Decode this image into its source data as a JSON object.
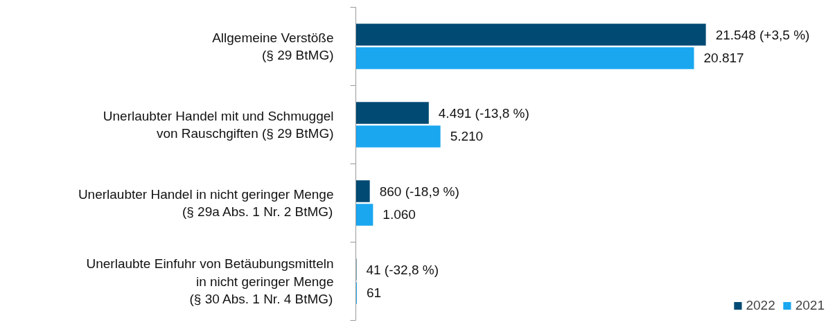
{
  "chart_data": {
    "type": "bar",
    "orientation": "horizontal",
    "categories": [
      "Allgemeine Verstöße\n(§ 29 BtMG)",
      "Unerlaubter Handel mit und Schmuggel\nvon Rauschgiften (§ 29 BtMG)",
      "Unerlaubter Handel in nicht geringer Menge\n(§ 29a Abs. 1 Nr. 2 BtMG)",
      "Unerlaubte Einfuhr von Betäubungsmitteln\nin nicht geringer Menge\n(§ 30 Abs. 1 Nr. 4 BtMG)"
    ],
    "series": [
      {
        "name": "2022",
        "color": "#004a73",
        "values": [
          21548,
          4491,
          860,
          41
        ],
        "value_labels": [
          "21.548 (+3,5 %)",
          "4.491 (-13,8 %)",
          "860 (-18,9 %)",
          "41 (-32,8 %)"
        ]
      },
      {
        "name": "2021",
        "color": "#1aa7f0",
        "values": [
          20817,
          5210,
          1060,
          61
        ],
        "value_labels": [
          "20.817",
          "5.210",
          "1.060",
          "61"
        ]
      }
    ],
    "legend": "bottom right",
    "grid": false
  }
}
